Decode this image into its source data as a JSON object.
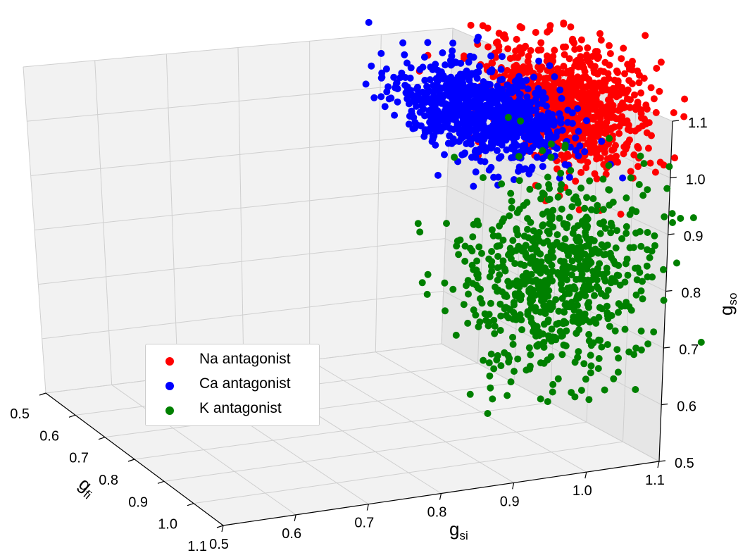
{
  "chart_data": {
    "type": "scatter3d",
    "x_axis": {
      "label_main": "g",
      "label_sub": "si",
      "ticks": [
        "0.5",
        "0.6",
        "0.7",
        "0.8",
        "0.9",
        "1.0",
        "1.1"
      ],
      "range": [
        0.5,
        1.1
      ]
    },
    "y_axis": {
      "label_main": "g",
      "label_sub": "fi",
      "ticks": [
        "0.5",
        "0.6",
        "0.7",
        "0.8",
        "0.9",
        "1.0",
        "1.1"
      ],
      "range": [
        0.5,
        1.1
      ]
    },
    "z_axis": {
      "label_main": "g",
      "label_sub": "so",
      "ticks": [
        "0.5",
        "0.6",
        "0.7",
        "0.8",
        "0.9",
        "1.0",
        "1.1"
      ],
      "range": [
        0.5,
        1.1
      ]
    },
    "grid": true,
    "legend_placement": "lower-left",
    "series": [
      {
        "name": "Na antagonist",
        "color": "#ff0000",
        "count": 900,
        "center": {
          "gsi": 1.03,
          "gfi": 0.95,
          "gso": 1.1
        },
        "spread": {
          "gsi": 0.035,
          "gfi": 0.09,
          "gso": 0.05
        }
      },
      {
        "name": "Ca antagonist",
        "color": "#0000ff",
        "count": 900,
        "center": {
          "gsi": 1.03,
          "gfi": 0.73,
          "gso": 1.02
        },
        "spread": {
          "gsi": 0.035,
          "gfi": 0.09,
          "gso": 0.035
        }
      },
      {
        "name": "K antagonist",
        "color": "#008000",
        "count": 700,
        "center": {
          "gsi": 0.99,
          "gfi": 1.02,
          "gso": 0.82
        },
        "spread": {
          "gsi": 0.06,
          "gfi": 0.04,
          "gso": 0.09
        }
      }
    ]
  }
}
